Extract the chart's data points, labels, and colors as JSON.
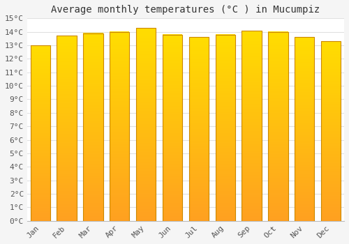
{
  "title": "Average monthly temperatures (°C ) in Mucumpiz",
  "months": [
    "Jan",
    "Feb",
    "Mar",
    "Apr",
    "May",
    "Jun",
    "Jul",
    "Aug",
    "Sep",
    "Oct",
    "Nov",
    "Dec"
  ],
  "values": [
    13.0,
    13.7,
    13.9,
    14.0,
    14.3,
    13.8,
    13.6,
    13.8,
    14.1,
    14.0,
    13.6,
    13.3
  ],
  "bar_color_top": "#FFDD00",
  "bar_color_bottom": "#FFA020",
  "bar_edge_color": "#CC8800",
  "ylim": [
    0,
    15
  ],
  "background_color": "#f5f5f5",
  "plot_bg_color": "#ffffff",
  "grid_color": "#e0e0e0",
  "title_fontsize": 10,
  "tick_fontsize": 8,
  "figsize": [
    5.0,
    3.5
  ],
  "dpi": 100,
  "bar_width": 0.75
}
